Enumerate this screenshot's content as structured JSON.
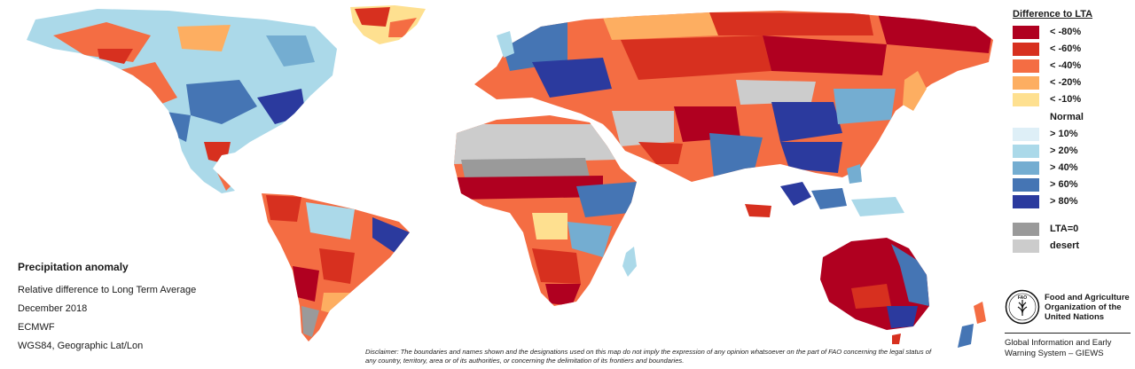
{
  "info": {
    "title": "Precipitation anomaly",
    "lines": [
      "Relative difference to Long Term Average",
      "December 2018",
      "ECMWF",
      "WGS84, Geographic Lat/Lon"
    ]
  },
  "legend": {
    "title": "Difference to LTA",
    "dry": [
      {
        "label": "< -80%",
        "color": "#b00020"
      },
      {
        "label": "< -60%",
        "color": "#d7301f"
      },
      {
        "label": "< -40%",
        "color": "#f46d43"
      },
      {
        "label": "< -20%",
        "color": "#fdae61"
      },
      {
        "label": "< -10%",
        "color": "#fee090"
      }
    ],
    "normal_label": "Normal",
    "wet": [
      {
        "label": "> 10%",
        "color": "#deeff7"
      },
      {
        "label": "> 20%",
        "color": "#abd9e9"
      },
      {
        "label": "> 40%",
        "color": "#74add1"
      },
      {
        "label": "> 60%",
        "color": "#4575b4"
      },
      {
        "label": "> 80%",
        "color": "#2b3a9e"
      }
    ],
    "other": [
      {
        "label": "LTA=0",
        "color": "#9a9a9a"
      },
      {
        "label": "desert",
        "color": "#cccccc"
      }
    ]
  },
  "fao": {
    "logo_text": "FAO",
    "name_lines": [
      "Food and Agriculture",
      "Organization of the",
      "United Nations"
    ],
    "giews_lines": [
      "Global Information and Early",
      "Warning System – GIEWS"
    ]
  },
  "disclaimer": "Disclaimer: The boundaries and names shown and the designations used on this map do not imply the expression of any opinion whatsoever on the part of FAO concerning the legal status of any country, territory, area or of its authorities, or concerning the delimitation of its frontiers and boundaries.",
  "colors": {
    "ocean": "#ffffff",
    "border": "#3a3a3a"
  }
}
